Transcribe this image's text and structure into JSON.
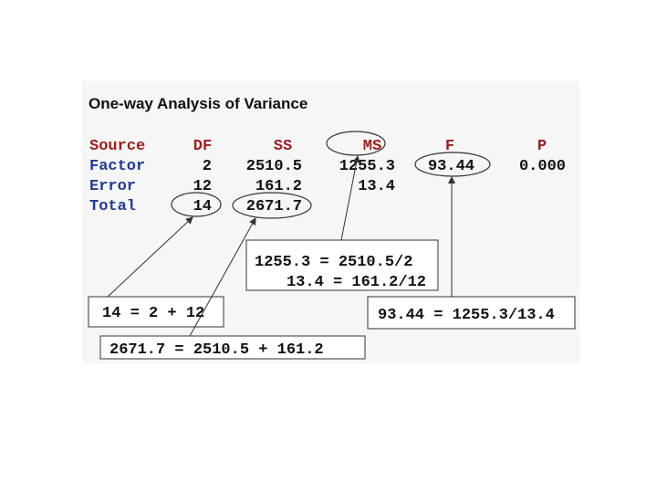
{
  "title": "One-way Analysis of Variance",
  "table": {
    "header": [
      "Source",
      "DF",
      "SS",
      "MS",
      "F",
      "P"
    ],
    "rows": [
      [
        "Factor",
        "2",
        "2510.5",
        "1255.3",
        "93.44",
        "0.000"
      ],
      [
        "Error",
        "12",
        "161.2",
        "13.4"
      ],
      [
        "Total",
        "14",
        "2671.7"
      ]
    ]
  },
  "annotations": {
    "ms_box": [
      "1255.3 = 2510.5/2",
      "13.4 = 161.2/12"
    ],
    "df_box": "14 = 2 + 12",
    "ss_box": "2671.7 = 2510.5 + 161.2",
    "f_box": "93.44 = 1255.3/13.4"
  }
}
